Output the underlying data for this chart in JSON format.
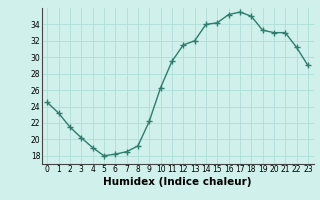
{
  "x": [
    0,
    1,
    2,
    3,
    4,
    5,
    6,
    7,
    8,
    9,
    10,
    11,
    12,
    13,
    14,
    15,
    16,
    17,
    18,
    19,
    20,
    21,
    22,
    23
  ],
  "y": [
    24.5,
    23.2,
    21.5,
    20.2,
    19.0,
    18.0,
    18.2,
    18.5,
    19.2,
    22.2,
    26.3,
    29.5,
    31.5,
    32.0,
    34.0,
    34.2,
    35.2,
    35.5,
    35.0,
    33.3,
    33.0,
    33.0,
    31.2,
    29.0
  ],
  "line_color": "#2e7d6e",
  "marker_color": "#2e7d6e",
  "bg_color": "#cff0eb",
  "grid_color": "#aeddd8",
  "xlabel": "Humidex (Indice chaleur)",
  "ylim": [
    17,
    36
  ],
  "xlim": [
    -0.5,
    23.5
  ],
  "yticks": [
    18,
    20,
    22,
    24,
    26,
    28,
    30,
    32,
    34
  ],
  "xticks": [
    0,
    1,
    2,
    3,
    4,
    5,
    6,
    7,
    8,
    9,
    10,
    11,
    12,
    13,
    14,
    15,
    16,
    17,
    18,
    19,
    20,
    21,
    22,
    23
  ],
  "tick_fontsize": 5.5,
  "xlabel_fontsize": 7.5,
  "linewidth": 1.0,
  "markersize": 2.5
}
